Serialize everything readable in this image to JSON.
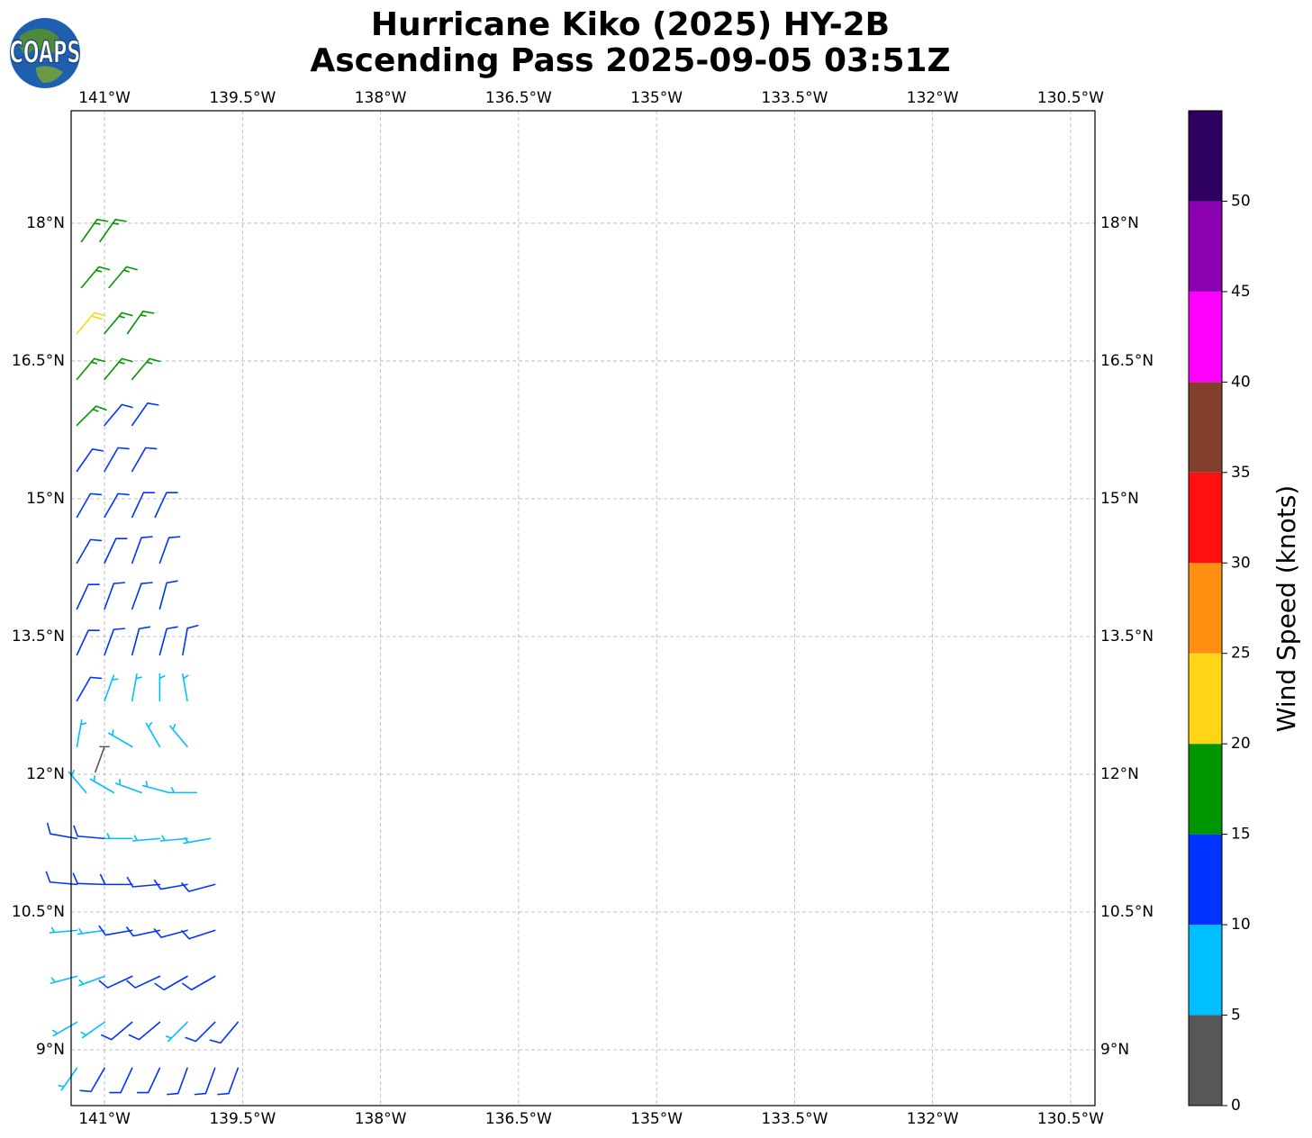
{
  "chart_data": {
    "type": "barbs",
    "logo": "COAPS",
    "title": "Hurricane Kiko (2025) HY-2B",
    "subtitle": "Ascending Pass 2025-09-05 03:51Z",
    "xlim": [
      -141.363,
      -130.235
    ],
    "ylim": [
      8.392,
      19.225
    ],
    "xticks": [
      {
        "value": -141,
        "label": "141°W"
      },
      {
        "value": -139.5,
        "label": "139.5°W"
      },
      {
        "value": -138,
        "label": "138°W"
      },
      {
        "value": -136.5,
        "label": "136.5°W"
      },
      {
        "value": -135,
        "label": "135°W"
      },
      {
        "value": -133.5,
        "label": "133.5°W"
      },
      {
        "value": -132,
        "label": "132°W"
      },
      {
        "value": -130.5,
        "label": "130.5°W"
      }
    ],
    "yticks": [
      {
        "value": 9,
        "label": "9°N"
      },
      {
        "value": 10.5,
        "label": "10.5°N"
      },
      {
        "value": 12,
        "label": "12°N"
      },
      {
        "value": 13.5,
        "label": "13.5°N"
      },
      {
        "value": 15,
        "label": "15°N"
      },
      {
        "value": 16.5,
        "label": "16.5°N"
      },
      {
        "value": 18,
        "label": "18°N"
      }
    ],
    "grid": true,
    "colorbar": {
      "label": "Wind Speed (knots)",
      "lim": [
        0,
        55
      ],
      "bins": [
        0,
        5,
        10,
        15,
        20,
        25,
        30,
        35,
        40,
        45,
        50,
        55
      ],
      "colors": [
        "#575757",
        "#00bfff",
        "#0033ff",
        "#009600",
        "#ffd516",
        "#ff8f10",
        "#ff1010",
        "#823f2b",
        "#ff00ff",
        "#8b00b0",
        "#2e0061"
      ],
      "ticks": [
        0,
        5,
        10,
        15,
        20,
        25,
        30,
        35,
        40,
        45,
        50
      ]
    },
    "barbs": [
      {
        "lat": 17.8,
        "lon": [
          -141.25,
          -141.05
        ],
        "speed": [
          17,
          18
        ],
        "direction": [
          35,
          35
        ]
      },
      {
        "lat": 17.3,
        "lon": [
          -141.25,
          -140.95
        ],
        "speed": [
          18,
          17
        ],
        "direction": [
          40,
          40
        ]
      },
      {
        "lat": 16.8,
        "lon": [
          -141.3,
          -141.0,
          -140.75
        ],
        "speed": [
          22,
          18,
          17
        ],
        "direction": [
          40,
          40,
          35
        ]
      },
      {
        "lat": 16.3,
        "lon": [
          -141.3,
          -141.0,
          -140.7
        ],
        "speed": [
          17,
          18,
          17
        ],
        "direction": [
          40,
          40,
          40
        ]
      },
      {
        "lat": 15.8,
        "lon": [
          -141.3,
          -141.0,
          -140.7
        ],
        "speed": [
          16,
          13,
          12
        ],
        "direction": [
          45,
          40,
          35
        ]
      },
      {
        "lat": 15.3,
        "lon": [
          -141.3,
          -141.0,
          -140.7
        ],
        "speed": [
          13,
          12,
          12
        ],
        "direction": [
          35,
          30,
          30
        ]
      },
      {
        "lat": 14.8,
        "lon": [
          -141.3,
          -141.0,
          -140.7,
          -140.45
        ],
        "speed": [
          12,
          13,
          12,
          12
        ],
        "direction": [
          30,
          30,
          25,
          25
        ]
      },
      {
        "lat": 14.3,
        "lon": [
          -141.3,
          -141.0,
          -140.7,
          -140.4
        ],
        "speed": [
          13,
          12,
          13,
          12
        ],
        "direction": [
          30,
          25,
          20,
          20
        ]
      },
      {
        "lat": 13.8,
        "lon": [
          -141.3,
          -141.0,
          -140.7,
          -140.4
        ],
        "speed": [
          12,
          13,
          12,
          11
        ],
        "direction": [
          25,
          20,
          20,
          15
        ]
      },
      {
        "lat": 13.3,
        "lon": [
          -141.3,
          -141.0,
          -140.7,
          -140.4,
          -140.15
        ],
        "speed": [
          12,
          12,
          11,
          11,
          10
        ],
        "direction": [
          25,
          20,
          15,
          15,
          10
        ]
      },
      {
        "lat": 12.8,
        "lon": [
          -141.3,
          -141.0,
          -140.7,
          -140.4,
          -140.1
        ],
        "speed": [
          11,
          8,
          7,
          8,
          7
        ],
        "direction": [
          30,
          20,
          10,
          0,
          350
        ]
      },
      {
        "lat": 12.3,
        "lon": [
          -141.3,
          -141.0,
          -140.7,
          -140.4,
          -140.1
        ],
        "speed": [
          9,
          3,
          6,
          8,
          7
        ],
        "direction": [
          10,
          200,
          300,
          330,
          320
        ]
      },
      {
        "lat": 11.8,
        "lon": [
          -141.2,
          -140.9,
          -140.6,
          -140.3,
          -140.0
        ],
        "speed": [
          8,
          9,
          8,
          7,
          8
        ],
        "direction": [
          320,
          300,
          290,
          285,
          270
        ]
      },
      {
        "lat": 11.3,
        "lon": [
          -141.3,
          -141.0,
          -140.7,
          -140.4,
          -140.1,
          -139.85
        ],
        "speed": [
          12,
          11,
          9,
          8,
          8,
          8
        ],
        "direction": [
          280,
          275,
          270,
          265,
          265,
          260
        ]
      },
      {
        "lat": 10.8,
        "lon": [
          -141.3,
          -141.0,
          -140.7,
          -140.4,
          -140.1,
          -139.8
        ],
        "speed": [
          12,
          13,
          12,
          12,
          12,
          11
        ],
        "direction": [
          275,
          272,
          270,
          265,
          260,
          255
        ]
      },
      {
        "lat": 10.3,
        "lon": [
          -141.3,
          -141.0,
          -140.7,
          -140.4,
          -140.1,
          -139.8
        ],
        "speed": [
          8,
          9,
          11,
          12,
          12,
          11
        ],
        "direction": [
          265,
          262,
          260,
          258,
          255,
          252
        ]
      },
      {
        "lat": 9.8,
        "lon": [
          -141.3,
          -141.0,
          -140.7,
          -140.4,
          -140.1,
          -139.8
        ],
        "speed": [
          8,
          9,
          12,
          11,
          12,
          11
        ],
        "direction": [
          255,
          250,
          245,
          245,
          240,
          240
        ]
      },
      {
        "lat": 9.3,
        "lon": [
          -141.3,
          -141.0,
          -140.7,
          -140.4,
          -140.1,
          -139.8,
          -139.55
        ],
        "speed": [
          8,
          8,
          12,
          12,
          9,
          11,
          12
        ],
        "direction": [
          240,
          235,
          230,
          230,
          225,
          225,
          220
        ]
      },
      {
        "lat": 8.8,
        "lon": [
          -141.3,
          -141.0,
          -140.7,
          -140.4,
          -140.1,
          -139.8,
          -139.55
        ],
        "speed": [
          9,
          12,
          12,
          11,
          12,
          12,
          11
        ],
        "direction": [
          215,
          210,
          205,
          205,
          200,
          200,
          200
        ]
      }
    ]
  }
}
